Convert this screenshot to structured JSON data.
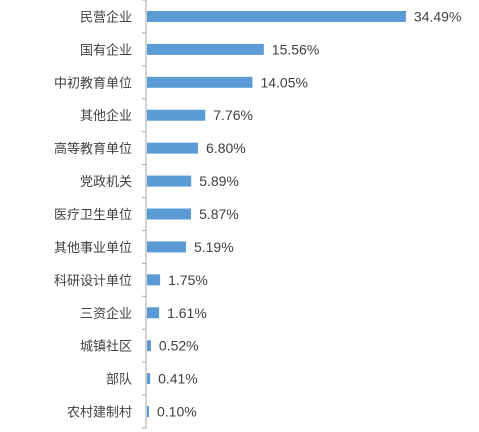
{
  "chart_data": {
    "type": "bar",
    "orientation": "horizontal",
    "categories": [
      "民营企业",
      "国有企业",
      "中初教育单位",
      "其他企业",
      "高等教育单位",
      "党政机关",
      "医疗卫生单位",
      "其他事业单位",
      "科研设计单位",
      "三资企业",
      "城镇社区",
      "部队",
      "农村建制村"
    ],
    "values": [
      34.49,
      15.56,
      14.05,
      7.76,
      6.8,
      5.89,
      5.87,
      5.19,
      1.75,
      1.61,
      0.52,
      0.41,
      0.1
    ],
    "data_labels": [
      "34.49%",
      "15.56%",
      "14.05%",
      "7.76%",
      "6.80%",
      "5.89%",
      "5.87%",
      "5.19%",
      "1.75%",
      "1.61%",
      "0.52%",
      "0.41%",
      "0.10%"
    ],
    "bar_color": "#5B9BD5",
    "xlim": [
      0,
      36.5
    ],
    "title": "",
    "xlabel": "",
    "ylabel": "",
    "grid": false,
    "legend": "none"
  }
}
